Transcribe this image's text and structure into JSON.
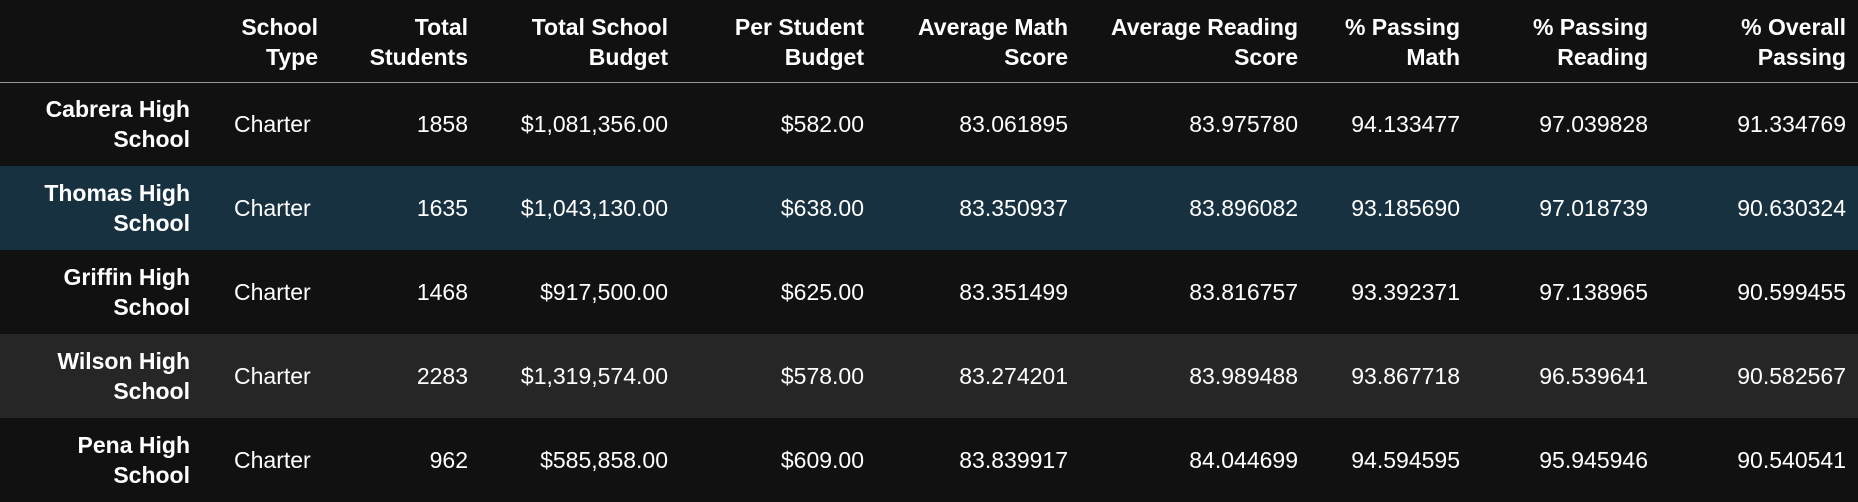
{
  "table": {
    "headers": [
      "",
      "School Type",
      "Total Students",
      "Total School Budget",
      "Per Student Budget",
      "Average Math Score",
      "Average Reading Score",
      "% Passing Math",
      "% Passing Reading",
      "% Overall Passing"
    ],
    "rows": [
      {
        "school": "Cabrera High School",
        "type": "Charter",
        "students": "1858",
        "budget": "$1,081,356.00",
        "per_student": "$582.00",
        "math": "83.061895",
        "reading": "83.975780",
        "pass_math": "94.133477",
        "pass_reading": "97.039828",
        "overall": "91.334769"
      },
      {
        "school": "Thomas High School",
        "type": "Charter",
        "students": "1635",
        "budget": "$1,043,130.00",
        "per_student": "$638.00",
        "math": "83.350937",
        "reading": "83.896082",
        "pass_math": "93.185690",
        "pass_reading": "97.018739",
        "overall": "90.630324"
      },
      {
        "school": "Griffin High School",
        "type": "Charter",
        "students": "1468",
        "budget": "$917,500.00",
        "per_student": "$625.00",
        "math": "83.351499",
        "reading": "83.816757",
        "pass_math": "93.392371",
        "pass_reading": "97.138965",
        "overall": "90.599455"
      },
      {
        "school": "Wilson High School",
        "type": "Charter",
        "students": "2283",
        "budget": "$1,319,574.00",
        "per_student": "$578.00",
        "math": "83.274201",
        "reading": "83.989488",
        "pass_math": "93.867718",
        "pass_reading": "96.539641",
        "overall": "90.582567"
      },
      {
        "school": "Pena High School",
        "type": "Charter",
        "students": "962",
        "budget": "$585,858.00",
        "per_student": "$609.00",
        "math": "83.839917",
        "reading": "84.044699",
        "pass_math": "94.594595",
        "pass_reading": "95.945946",
        "overall": "90.540541"
      }
    ]
  },
  "colors": {
    "background": "#111111",
    "row_alt": "#262626",
    "row_hover": "#173140",
    "header_rule": "#9a9a9a",
    "text": "#ffffff"
  }
}
